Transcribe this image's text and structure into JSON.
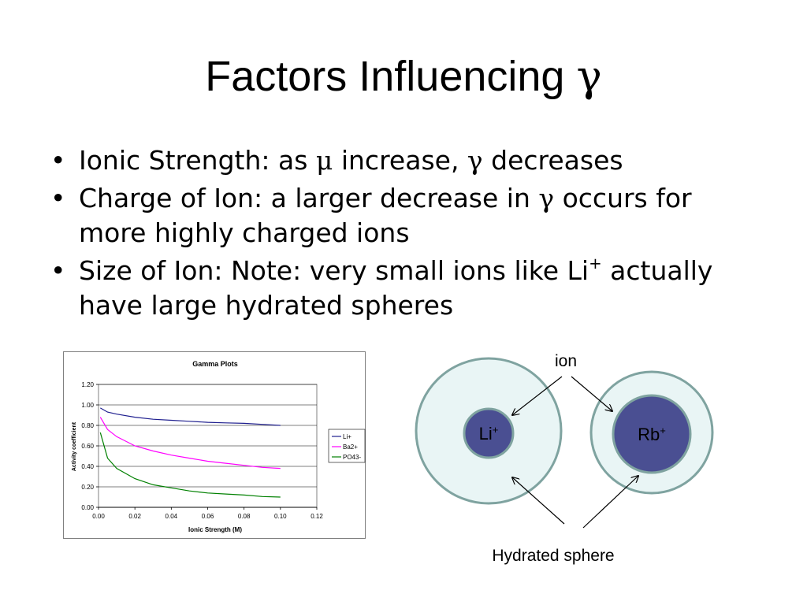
{
  "slide": {
    "title_text": "Factors Influencing ",
    "title_symbol": "γ",
    "bullets": [
      {
        "parts": [
          "Ionic Strength: as ",
          "μ",
          " increase, ",
          "γ",
          " decreases"
        ]
      },
      {
        "parts": [
          "Charge of Ion: a larger decrease in ",
          "γ",
          " occurs for more highly charged ions"
        ]
      },
      {
        "parts": [
          "Size of Ion:  Note: very small ions like Li",
          "+",
          " actually have large hydrated spheres"
        ]
      }
    ],
    "bullet_glyph": "•"
  },
  "chart_data": {
    "type": "line",
    "title": "Gamma Plots",
    "xlabel": "Ionic Strength (M)",
    "ylabel": "Activity coefficient",
    "xlim": [
      0,
      0.12
    ],
    "ylim": [
      0,
      1.2
    ],
    "x_ticks": [
      "0.00",
      "0.02",
      "0.04",
      "0.06",
      "0.08",
      "0.10",
      "0.12"
    ],
    "y_ticks": [
      "0.00",
      "0.20",
      "0.40",
      "0.60",
      "0.80",
      "1.00",
      "1.20"
    ],
    "grid": true,
    "legend_position": "right",
    "series": [
      {
        "name": "Li+",
        "color": "#1f1f8f",
        "x": [
          0.001,
          0.005,
          0.01,
          0.02,
          0.03,
          0.04,
          0.05,
          0.06,
          0.07,
          0.08,
          0.09,
          0.1
        ],
        "y": [
          0.97,
          0.93,
          0.91,
          0.88,
          0.86,
          0.85,
          0.84,
          0.83,
          0.825,
          0.82,
          0.81,
          0.8
        ]
      },
      {
        "name": "Ba2+",
        "color": "#ff00ff",
        "x": [
          0.001,
          0.005,
          0.01,
          0.02,
          0.03,
          0.04,
          0.05,
          0.06,
          0.07,
          0.08,
          0.09,
          0.1
        ],
        "y": [
          0.88,
          0.76,
          0.69,
          0.6,
          0.55,
          0.51,
          0.48,
          0.45,
          0.43,
          0.41,
          0.39,
          0.38
        ]
      },
      {
        "name": "PO43-",
        "color": "#008000",
        "x": [
          0.001,
          0.005,
          0.01,
          0.02,
          0.03,
          0.04,
          0.05,
          0.06,
          0.07,
          0.08,
          0.09,
          0.1
        ],
        "y": [
          0.73,
          0.48,
          0.38,
          0.28,
          0.22,
          0.19,
          0.16,
          0.14,
          0.13,
          0.12,
          0.105,
          0.1
        ]
      }
    ]
  },
  "diagram": {
    "top_label": "ion",
    "bottom_label": "Hydrated sphere",
    "ion_small": {
      "text": "Li",
      "charge": "+"
    },
    "ion_large": {
      "text": "Rb",
      "charge": "+"
    },
    "colors": {
      "sphere_fill": "#e9f5f5",
      "sphere_stroke": "#7fa3a0",
      "ion_fill": "#4a4f92",
      "ion_stroke": "#7fa3a0",
      "ion_text": "#ffffff"
    }
  }
}
